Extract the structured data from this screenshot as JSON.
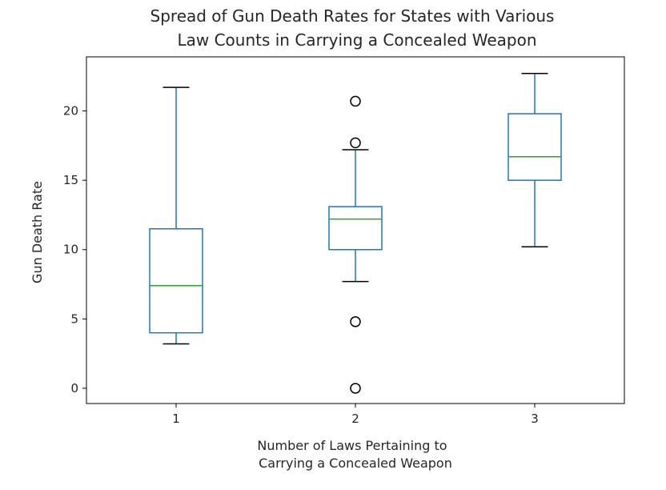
{
  "colors": {
    "box": "#1f77b4",
    "median": "#2ca02c",
    "whisker": "#000000",
    "flier": "#000000",
    "axes": "#000000"
  },
  "chart_data": {
    "type": "box",
    "title": [
      "Spread of Gun Death Rates for States with Various",
      "Law Counts in Carrying a Concealed Weapon"
    ],
    "xlabel": [
      "Number of Laws Pertaining to",
      "Carrying a Concealed Weapon"
    ],
    "ylabel": "Gun Death Rate",
    "categories": [
      "1",
      "2",
      "3"
    ],
    "ylim": [
      -1.1,
      23.9
    ],
    "yticks": [
      0,
      5,
      10,
      15,
      20
    ],
    "boxes": [
      {
        "category": "1",
        "whisker_low": 3.2,
        "q1": 4.0,
        "median": 7.4,
        "q3": 11.5,
        "whisker_high": 21.7,
        "fliers": []
      },
      {
        "category": "2",
        "whisker_low": 7.7,
        "q1": 10.0,
        "median": 12.2,
        "q3": 13.1,
        "whisker_high": 17.2,
        "fliers": [
          20.7,
          17.7,
          4.8,
          0.0
        ]
      },
      {
        "category": "3",
        "whisker_low": 10.2,
        "q1": 15.0,
        "median": 16.7,
        "q3": 19.8,
        "whisker_high": 22.7,
        "fliers": []
      }
    ]
  }
}
